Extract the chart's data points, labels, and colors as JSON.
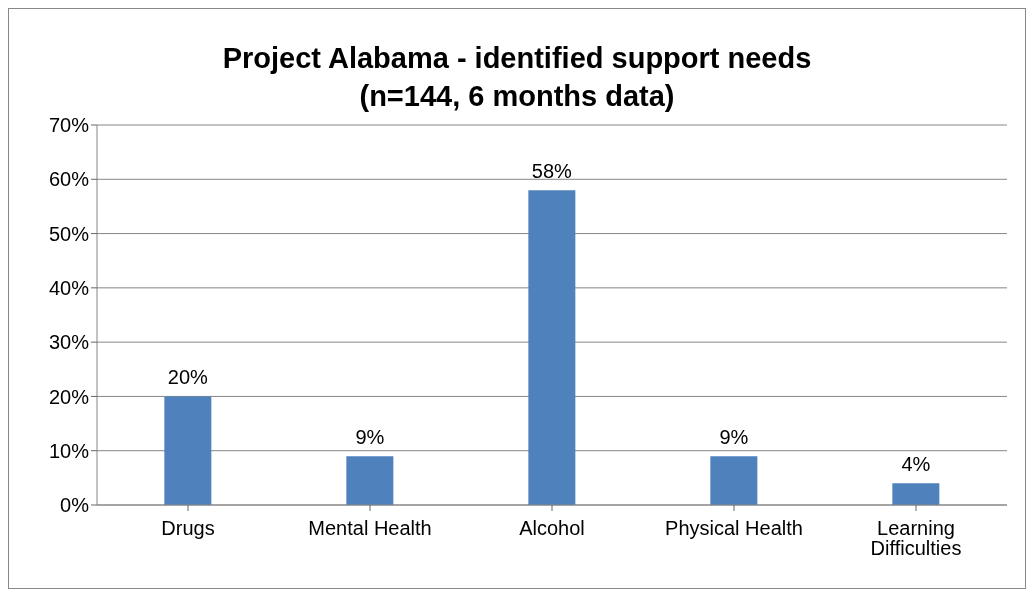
{
  "chart_data": {
    "type": "bar",
    "title": "Project Alabama - identified support needs\n(n=144, 6 months data)",
    "categories": [
      "Drugs",
      "Mental Health",
      "Alcohol",
      "Physical Health",
      "Learning Difficulties"
    ],
    "values": [
      20,
      9,
      58,
      9,
      4
    ],
    "value_labels": [
      "20%",
      "9%",
      "58%",
      "9%",
      "4%"
    ],
    "color": "#4f81bd",
    "ylim": [
      0,
      70
    ],
    "yticks": [
      {
        "value": 0,
        "label": "0%"
      },
      {
        "value": 10,
        "label": "10%"
      },
      {
        "value": 20,
        "label": "20%"
      },
      {
        "value": 30,
        "label": "30%"
      },
      {
        "value": 40,
        "label": "40%"
      },
      {
        "value": 50,
        "label": "50%"
      },
      {
        "value": 60,
        "label": "60%"
      },
      {
        "value": 70,
        "label": "70%"
      }
    ],
    "grid": "y"
  }
}
